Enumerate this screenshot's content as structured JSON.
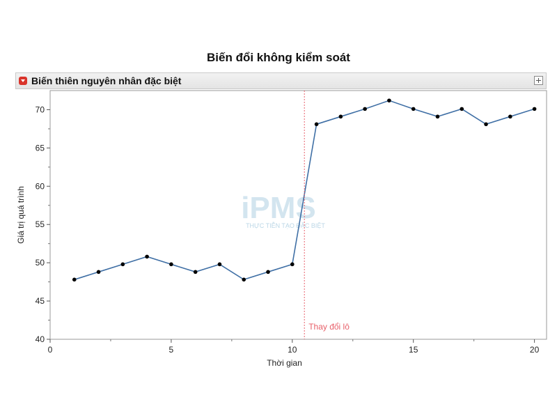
{
  "chart_title": "Biến đổi không kiểm soát",
  "panel": {
    "title": "Biến thiên nguyên nhân đặc biệt"
  },
  "watermark": {
    "logo": "iPMS",
    "tagline": "THỰC TIỄN TẠO ĐẶC BIỆT"
  },
  "chart_data": {
    "type": "line",
    "title": "Biến đổi không kiểm soát",
    "xlabel": "Thời gian",
    "ylabel": "Giá trị quá trình",
    "xlim": [
      0,
      20.5
    ],
    "ylim": [
      40,
      72.5
    ],
    "xticks": [
      0,
      5,
      10,
      15,
      20
    ],
    "yticks": [
      40,
      45,
      50,
      55,
      60,
      65,
      70
    ],
    "grid": false,
    "series": [
      {
        "x": [
          1,
          2,
          3,
          4,
          5,
          6,
          7,
          8,
          9,
          10,
          11,
          12,
          13,
          14,
          15,
          16,
          17,
          18,
          19,
          20
        ],
        "values": [
          47.8,
          48.8,
          49.8,
          50.8,
          49.8,
          48.8,
          49.8,
          47.8,
          48.8,
          49.8,
          68.1,
          69.1,
          70.1,
          71.2,
          70.1,
          69.1,
          70.1,
          68.1,
          69.1,
          70.1
        ],
        "color": "#3f6fa5",
        "marker_color": "#000000"
      }
    ],
    "annotations": [
      {
        "type": "vline",
        "x": 10.5,
        "label": "Thay đổi lô",
        "color": "#e8606a"
      }
    ]
  }
}
